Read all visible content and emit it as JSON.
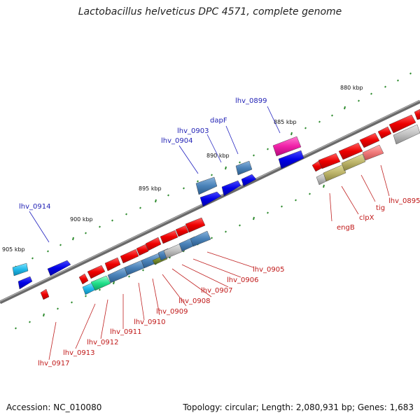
{
  "title": "Lactobacillus helveticus DPC 4571, complete genome",
  "footer": {
    "accession": "Accession: NC_010080",
    "topology": "Topology: circular; Length: 2,080,931 bp; Genes: 1,683"
  },
  "colors": {
    "forward_label": "#1f1fb4",
    "reverse_label": "#c01818",
    "backbone": "#7a7a7a",
    "tick": "#2e8b2e"
  },
  "scale_labels": [
    "880 kbp",
    "885 kbp",
    "890 kbp",
    "895 kbp",
    "900 kbp",
    "905 kbp"
  ],
  "forward_genes": [
    "lhv_0899",
    "dapF",
    "lhv_0903",
    "lhv_0904",
    "lhv_0914"
  ],
  "reverse_genes": [
    "lhv_0895",
    "tig",
    "clpX",
    "engB",
    "lhv_0905",
    "lhv_0906",
    "lhv_0907",
    "lhv_0908",
    "lhv_0909",
    "lhv_0910",
    "lhv_0911",
    "lhv_0912",
    "lhv_0913",
    "lhv_0917"
  ]
}
